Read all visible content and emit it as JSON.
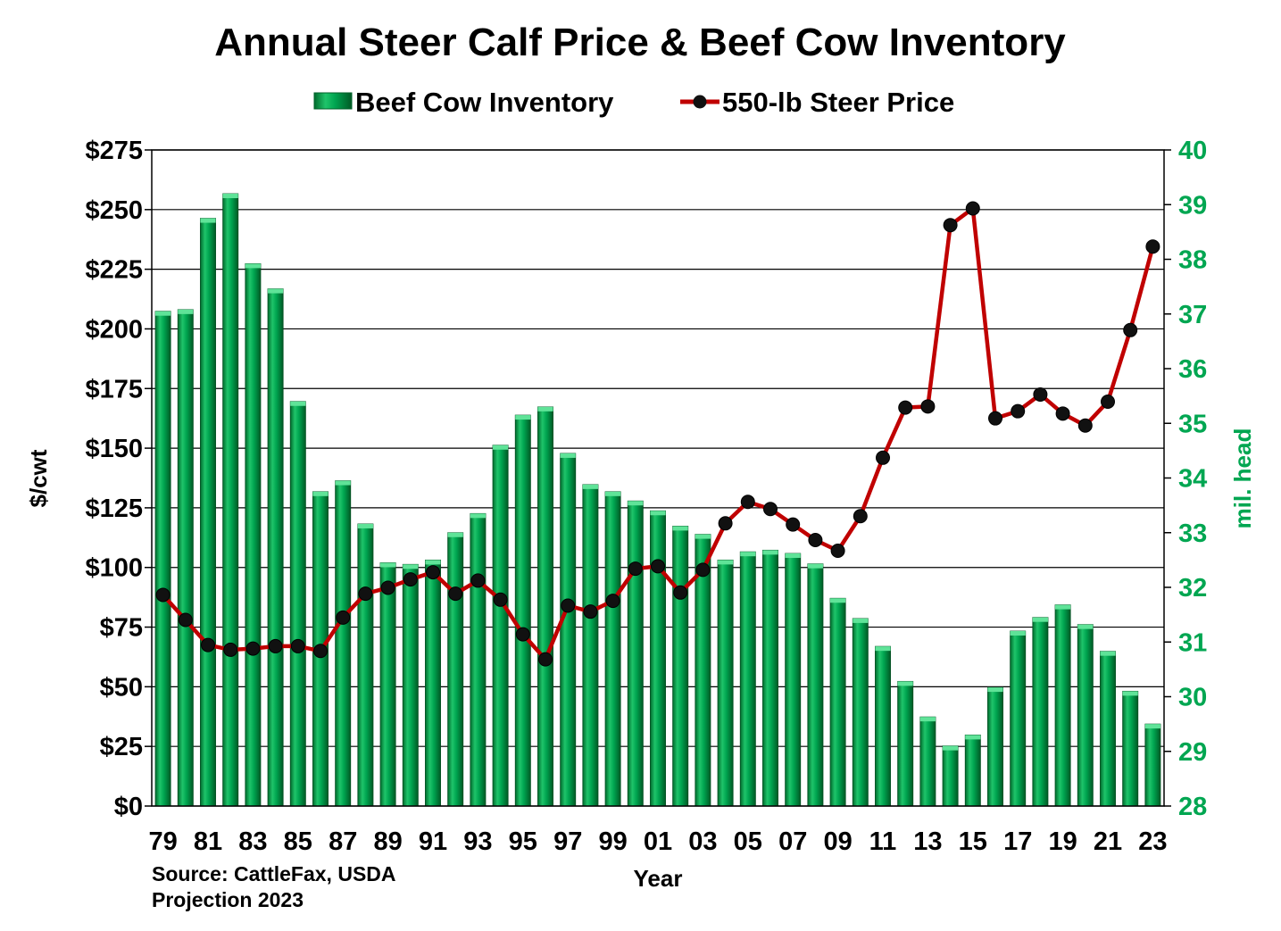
{
  "chart_data": {
    "type": "bar+line",
    "title": "Annual Steer Calf Price & Beef Cow Inventory",
    "xlabel": "Year",
    "ylabel": "$/cwt",
    "ylabel_right": "mil. head",
    "ylim": [
      0,
      275
    ],
    "ylim_right": [
      28,
      40
    ],
    "y_ticks": [
      "$0",
      "$25",
      "$50",
      "$75",
      "$100",
      "$125",
      "$150",
      "$175",
      "$200",
      "$225",
      "$250",
      "$275"
    ],
    "y_ticks_right": [
      "28",
      "29",
      "30",
      "31",
      "32",
      "33",
      "34",
      "35",
      "36",
      "37",
      "38",
      "39",
      "40"
    ],
    "x_tick_labels": [
      "79",
      "81",
      "83",
      "85",
      "87",
      "89",
      "91",
      "93",
      "95",
      "97",
      "99",
      "01",
      "03",
      "05",
      "07",
      "09",
      "11",
      "13",
      "15",
      "17",
      "19",
      "21",
      "23"
    ],
    "categories": [
      "79",
      "80",
      "81",
      "82",
      "83",
      "84",
      "85",
      "86",
      "87",
      "88",
      "89",
      "90",
      "91",
      "92",
      "93",
      "94",
      "95",
      "96",
      "97",
      "98",
      "99",
      "00",
      "01",
      "02",
      "03",
      "04",
      "05",
      "06",
      "07",
      "08",
      "09",
      "10",
      "11",
      "12",
      "13",
      "14",
      "15",
      "16",
      "17",
      "18",
      "19",
      "20",
      "21",
      "22",
      "23"
    ],
    "legend": [
      "Beef Cow Inventory",
      "550-lb Steer Price"
    ],
    "series": [
      {
        "name": "Beef Cow Inventory",
        "axis": "right",
        "kind": "bar",
        "color": "#00a651",
        "values": [
          37.05,
          37.08,
          38.75,
          39.2,
          37.92,
          37.46,
          35.4,
          33.75,
          33.95,
          33.16,
          32.45,
          32.42,
          32.5,
          33.0,
          33.35,
          34.6,
          35.15,
          35.3,
          34.45,
          33.88,
          33.75,
          33.58,
          33.4,
          33.12,
          32.97,
          32.5,
          32.65,
          32.68,
          32.62,
          32.43,
          31.8,
          31.43,
          30.92,
          30.28,
          29.63,
          29.1,
          29.3,
          30.17,
          31.2,
          31.45,
          31.68,
          31.32,
          30.83,
          30.1,
          29.5
        ]
      },
      {
        "name": "550-lb Steer Price",
        "axis": "left",
        "kind": "line",
        "color": "#c00000",
        "values": [
          88.5,
          78,
          67.5,
          65.5,
          66,
          67,
          67,
          65,
          79,
          89,
          91.5,
          95,
          98,
          89,
          94.5,
          86.5,
          72,
          61.5,
          84,
          81.5,
          86,
          99.5,
          100.5,
          89.5,
          99,
          118.5,
          127.5,
          124.5,
          118,
          111.5,
          107,
          121.5,
          146,
          167,
          167.5,
          243.5,
          250.5,
          162.5,
          165.5,
          172.5,
          164.5,
          159.5,
          169.5,
          199.5,
          234.5
        ]
      }
    ],
    "source_lines": [
      "Source: CattleFax, USDA",
      "Projection 2023"
    ]
  }
}
